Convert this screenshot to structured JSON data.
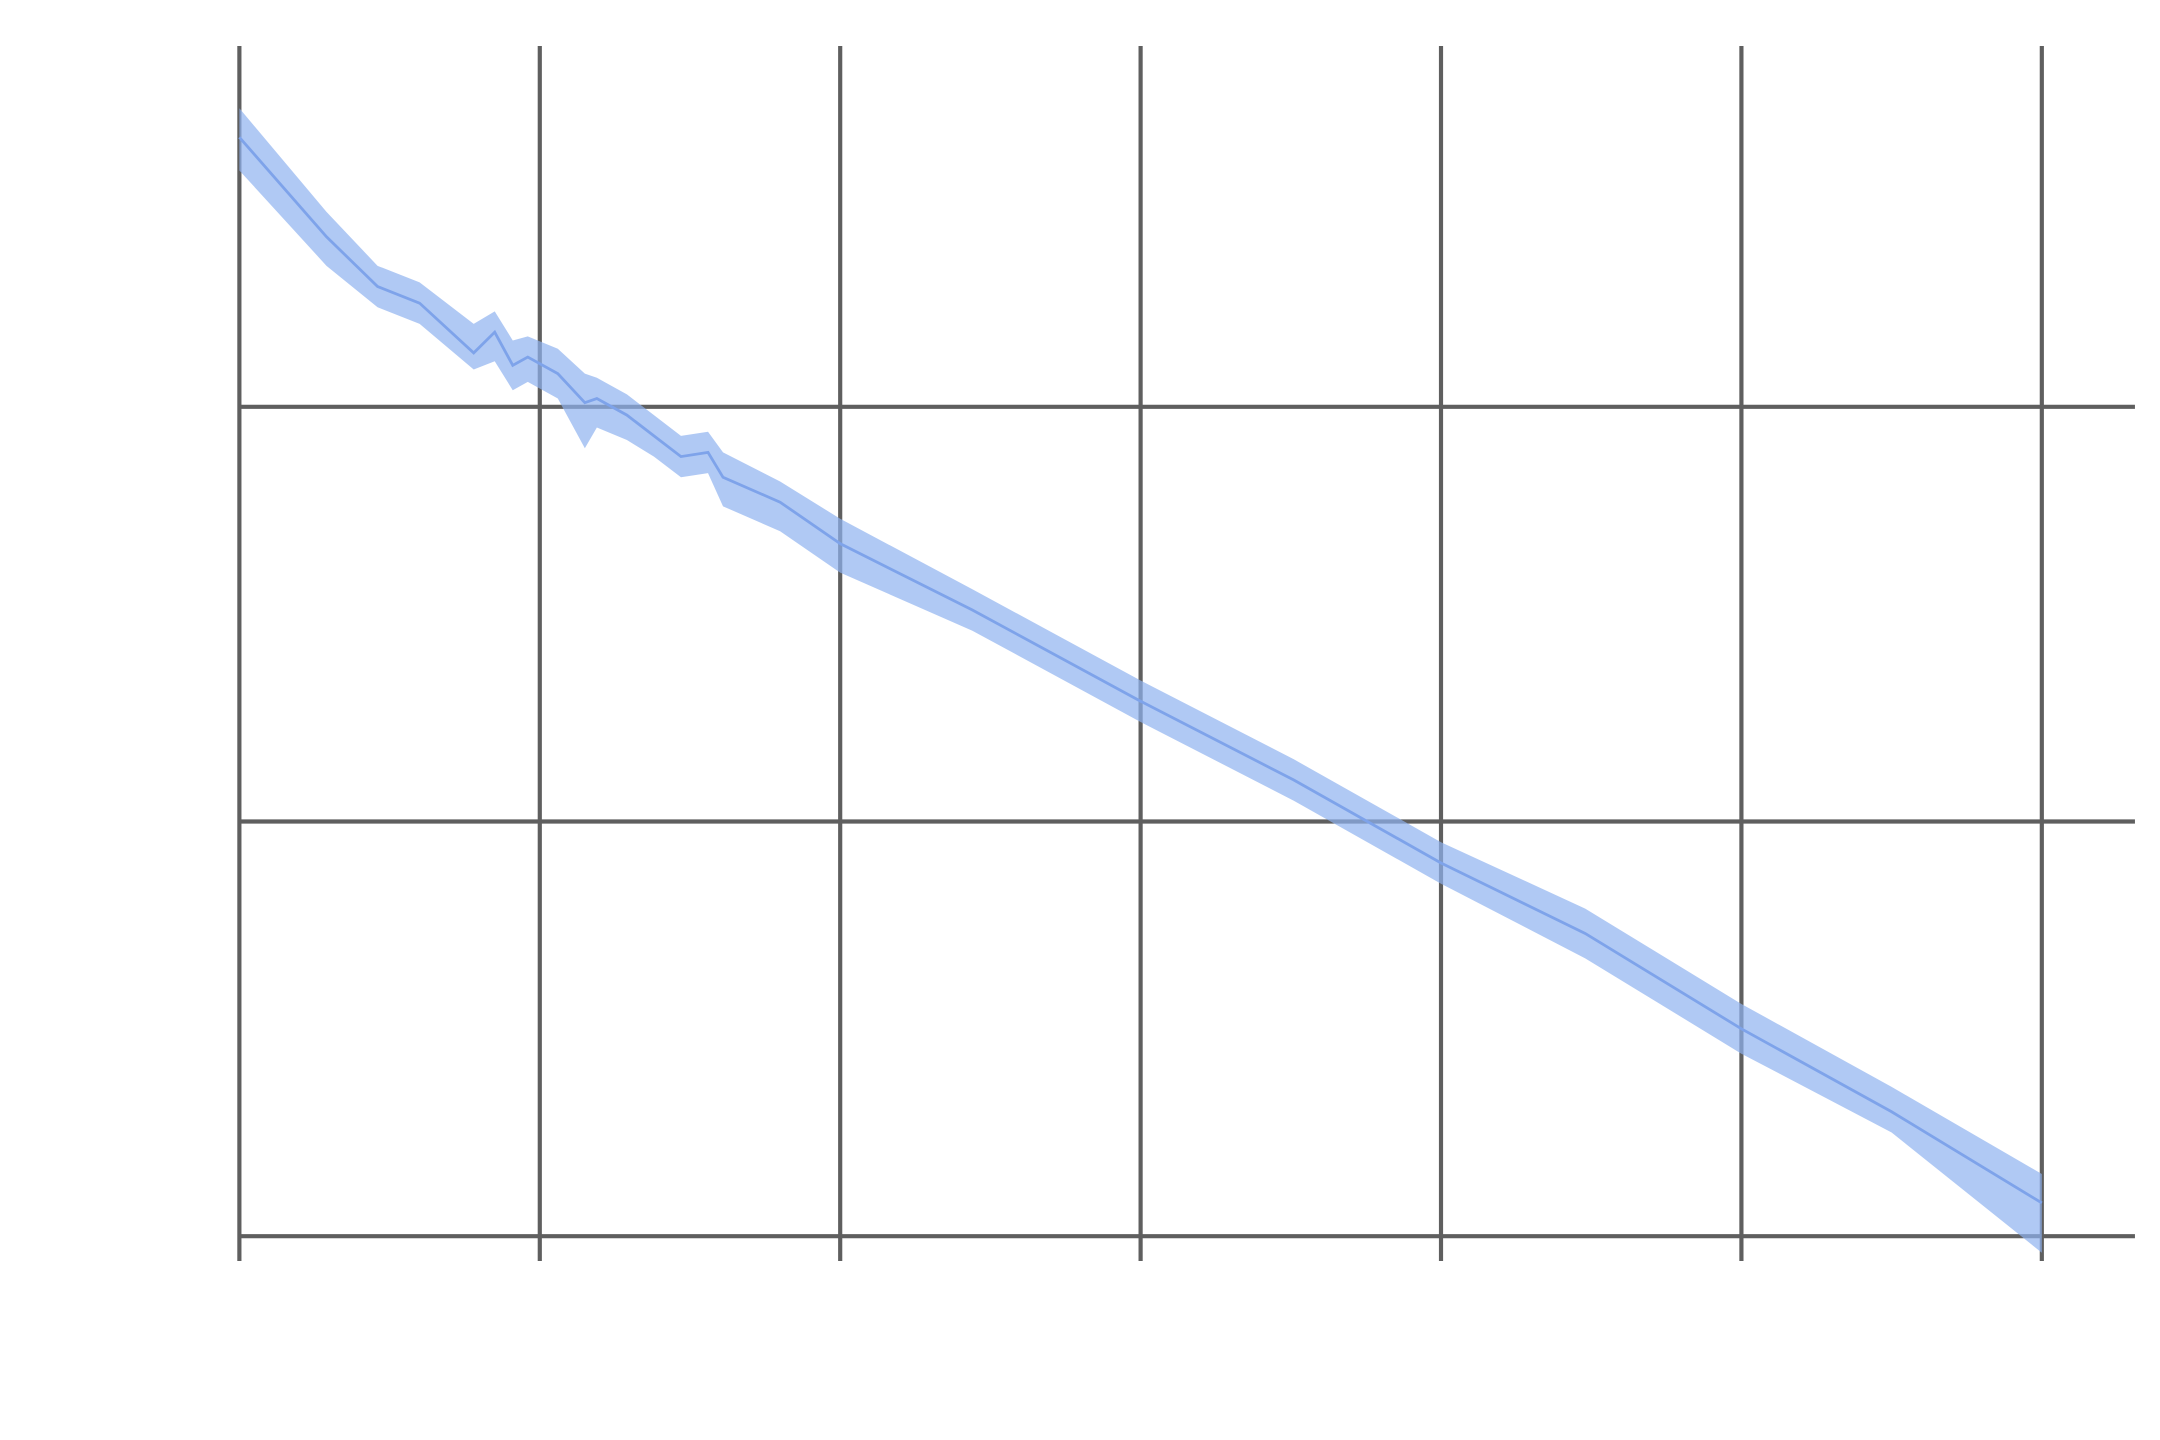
{
  "chart_data": {
    "type": "line",
    "x": [
      0,
      0.29,
      0.46,
      0.6,
      0.78,
      0.85,
      0.91,
      0.96,
      1.06,
      1.15,
      1.19,
      1.29,
      1.38,
      1.47,
      1.56,
      1.61,
      1.8,
      2.0,
      2.44,
      3.0,
      3.51,
      4.0,
      4.48,
      5.0,
      5.5,
      6.0
    ],
    "values": [
      2.65,
      2.41,
      2.29,
      2.25,
      2.13,
      2.18,
      2.1,
      2.12,
      2.08,
      2.01,
      2.02,
      1.98,
      1.93,
      1.88,
      1.89,
      1.83,
      1.77,
      1.67,
      1.51,
      1.29,
      1.1,
      0.9,
      0.73,
      0.5,
      0.3,
      0.08
    ],
    "lower": [
      2.57,
      2.34,
      2.24,
      2.2,
      2.09,
      2.11,
      2.04,
      2.06,
      2.02,
      1.9,
      1.95,
      1.92,
      1.88,
      1.83,
      1.84,
      1.76,
      1.7,
      1.6,
      1.46,
      1.24,
      1.05,
      0.85,
      0.67,
      0.44,
      0.25,
      -0.04
    ],
    "upper": [
      2.72,
      2.47,
      2.34,
      2.3,
      2.2,
      2.23,
      2.16,
      2.17,
      2.14,
      2.08,
      2.07,
      2.03,
      1.98,
      1.93,
      1.94,
      1.89,
      1.82,
      1.73,
      1.56,
      1.34,
      1.15,
      0.95,
      0.79,
      0.56,
      0.36,
      0.15
    ],
    "color": "#7ea3ea",
    "band_color": "#8fb2f0",
    "xlim": [
      0,
      6.31
    ],
    "ylim": [
      -0.06,
      2.87
    ],
    "xticks": [
      0,
      1,
      2,
      3,
      4,
      5,
      6
    ],
    "yticks": [
      0,
      1,
      2
    ],
    "grid": true
  }
}
